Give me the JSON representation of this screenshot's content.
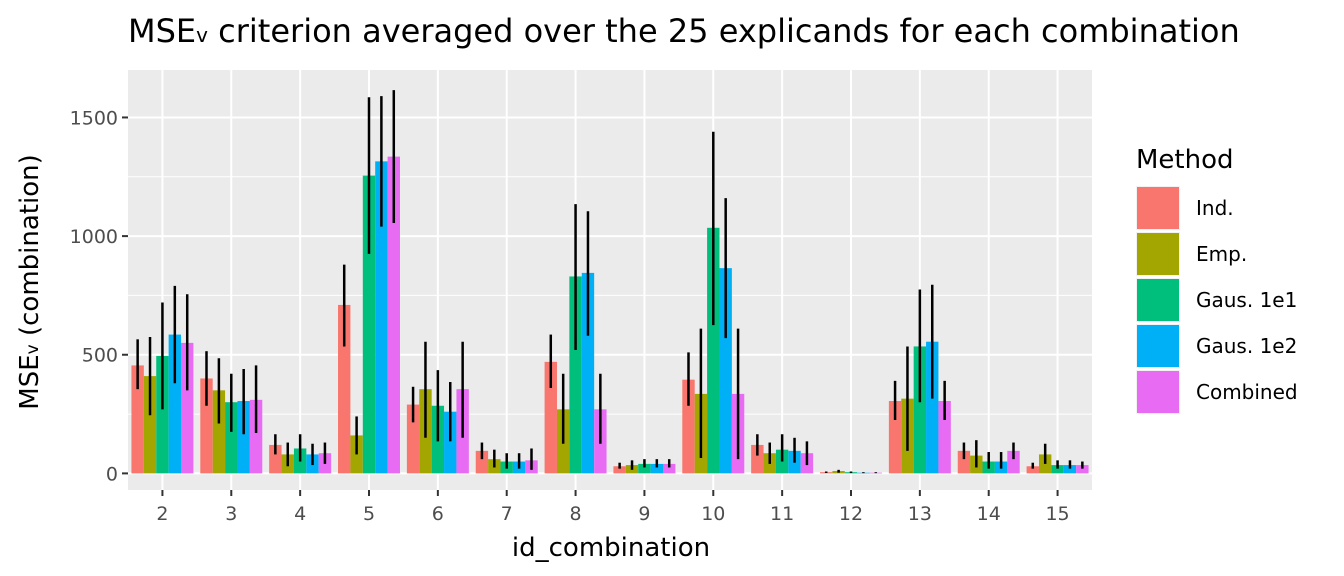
{
  "chart_data": {
    "type": "bar",
    "title_main": "MSE",
    "title_sub": "v",
    "title_rest": " criterion averaged over the 25 explicands for each combination",
    "xlabel": "id_combination",
    "ylabel_main": "MSE",
    "ylabel_sub": "v",
    "ylabel_rest": " (combination)",
    "categories": [
      "2",
      "3",
      "4",
      "5",
      "6",
      "7",
      "8",
      "9",
      "10",
      "11",
      "12",
      "13",
      "14",
      "15"
    ],
    "ylim": [
      -70,
      1700
    ],
    "yticks": [
      0,
      500,
      1000,
      1500
    ],
    "grid": true,
    "legend": {
      "title": "Method",
      "position": "right"
    },
    "series": [
      {
        "name": "Ind.",
        "color": "#F8766D",
        "values": [
          455,
          400,
          120,
          710,
          290,
          95,
          470,
          30,
          395,
          120,
          5,
          305,
          95,
          30
        ],
        "err_low": [
          355,
          285,
          80,
          535,
          215,
          60,
          360,
          20,
          285,
          75,
          2,
          225,
          60,
          20
        ],
        "err_high": [
          565,
          515,
          165,
          880,
          365,
          130,
          585,
          45,
          510,
          165,
          8,
          390,
          130,
          45
        ]
      },
      {
        "name": "Emp.",
        "color": "#A3A500",
        "values": [
          410,
          350,
          80,
          160,
          355,
          60,
          270,
          35,
          335,
          85,
          10,
          315,
          75,
          80
        ],
        "err_low": [
          245,
          210,
          30,
          80,
          150,
          25,
          125,
          15,
          65,
          40,
          3,
          95,
          25,
          40
        ],
        "err_high": [
          575,
          485,
          130,
          240,
          555,
          100,
          420,
          55,
          610,
          130,
          15,
          535,
          140,
          125
        ]
      },
      {
        "name": "Gaus. 1e1",
        "color": "#00BF7D",
        "values": [
          495,
          300,
          105,
          1255,
          285,
          50,
          830,
          40,
          1035,
          100,
          5,
          535,
          50,
          35
        ],
        "err_low": [
          270,
          175,
          50,
          925,
          135,
          20,
          520,
          25,
          625,
          50,
          2,
          300,
          20,
          20
        ],
        "err_high": [
          720,
          420,
          165,
          1585,
          435,
          85,
          1135,
          60,
          1440,
          165,
          8,
          775,
          90,
          55
        ]
      },
      {
        "name": "Gaus. 1e2",
        "color": "#00B0F6",
        "values": [
          585,
          305,
          80,
          1315,
          260,
          50,
          845,
          40,
          865,
          95,
          3,
          555,
          50,
          35
        ],
        "err_low": [
          380,
          165,
          35,
          1040,
          135,
          20,
          580,
          25,
          570,
          45,
          1,
          315,
          20,
          20
        ],
        "err_high": [
          790,
          440,
          125,
          1590,
          385,
          85,
          1105,
          60,
          1160,
          150,
          5,
          795,
          90,
          55
        ]
      },
      {
        "name": "Combined",
        "color": "#E76BF3",
        "values": [
          550,
          310,
          85,
          1335,
          355,
          55,
          270,
          40,
          335,
          85,
          3,
          305,
          95,
          35
        ],
        "err_low": [
          350,
          170,
          40,
          1055,
          150,
          15,
          125,
          25,
          60,
          35,
          1,
          225,
          60,
          20
        ],
        "err_high": [
          755,
          455,
          130,
          1615,
          555,
          105,
          420,
          60,
          610,
          135,
          5,
          390,
          130,
          50
        ]
      }
    ]
  }
}
